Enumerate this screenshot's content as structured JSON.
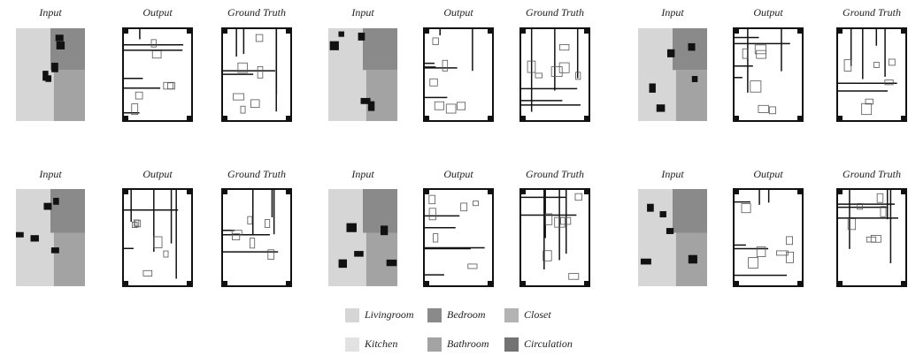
{
  "groups": [
    {
      "labels": [
        "Input",
        "Output",
        "Ground Truth"
      ]
    },
    {
      "labels": [
        "Input",
        "Output",
        "Ground Truth"
      ]
    },
    {
      "labels": [
        "Input",
        "Output",
        "Ground Truth"
      ]
    },
    {
      "labels": [
        "Input",
        "Output",
        "Ground Truth"
      ]
    },
    {
      "labels": [
        "Input",
        "Output",
        "Ground Truth"
      ]
    },
    {
      "labels": [
        "Input",
        "Output",
        "Ground Truth"
      ]
    }
  ],
  "legend": [
    {
      "label": "Livingroom",
      "color": "#d6d6d6"
    },
    {
      "label": "Bedroom",
      "color": "#8a8a8a"
    },
    {
      "label": "Closet",
      "color": "#b3b3b3"
    },
    {
      "label": "Kitchen",
      "color": "#e2e2e2"
    },
    {
      "label": "Bathroom",
      "color": "#a3a3a3"
    },
    {
      "label": "Circulation",
      "color": "#737373"
    }
  ]
}
